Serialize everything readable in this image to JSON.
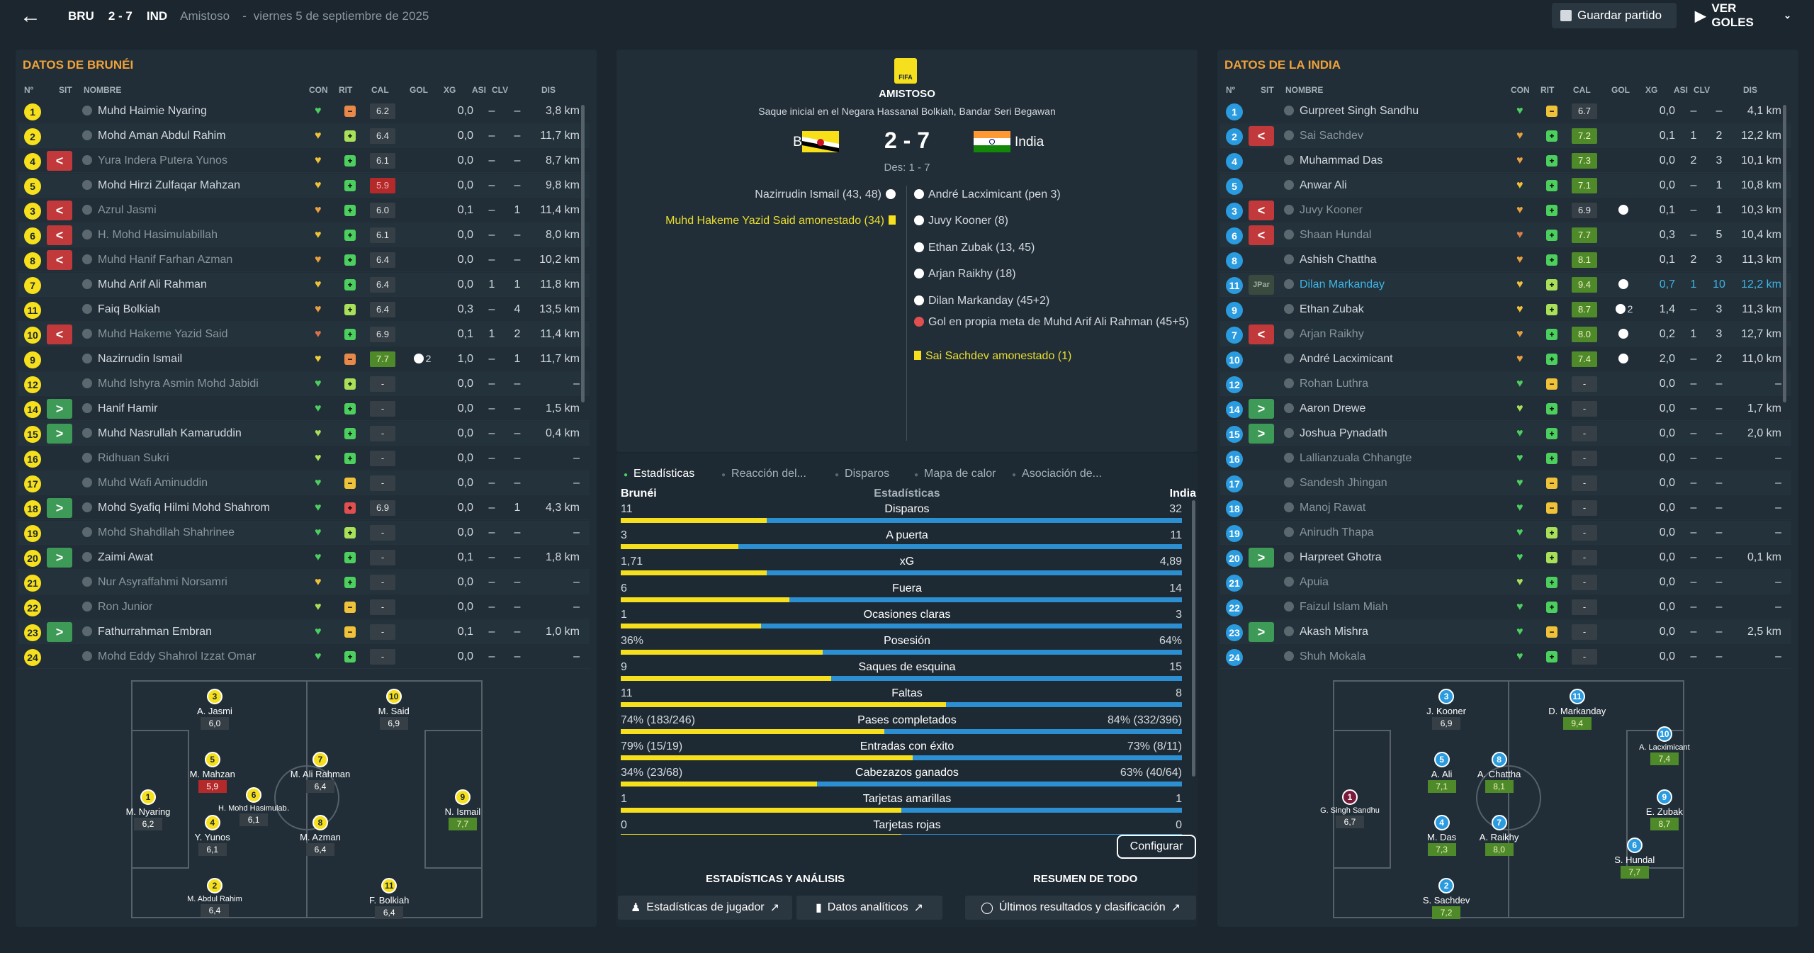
{
  "topbar": {
    "home": "BRU",
    "score": "2 - 7",
    "away": "IND",
    "competition": "Amistoso",
    "sep": "-",
    "date": "viernes 5 de septiembre de 2025",
    "save": "Guardar partido",
    "goals": "VER GOLES"
  },
  "headers": [
    "Nº",
    "SIT",
    "NOMBRE",
    "CON",
    "RIT",
    "CAL",
    "GOL",
    "XG",
    "ASI",
    "CLV",
    "DIS"
  ],
  "left": {
    "title": "DATOS DE BRUNÉI",
    "players": [
      {
        "n": "1",
        "s": "",
        "name": "Muhd Haimie Nyaring",
        "c": "#4ccf5f",
        "r": "#e8894a",
        "cal": "6.2",
        "ct": "",
        "g": "",
        "xg": "0,0",
        "a": "–",
        "k": "–",
        "d": "3,8 km",
        "dim": false
      },
      {
        "n": "2",
        "s": "",
        "name": "Mohd Aman Abdul Rahim",
        "c": "#f0c23a",
        "r": "#a8e05a",
        "cal": "6.4",
        "ct": "",
        "g": "",
        "xg": "0,0",
        "a": "–",
        "k": "–",
        "d": "11,7 km",
        "dim": false
      },
      {
        "n": "4",
        "s": "out",
        "name": "Yura Indera Putera Yunos",
        "c": "#f0c23a",
        "r": "#4ccf5f",
        "cal": "6.1",
        "ct": "",
        "g": "",
        "xg": "0,0",
        "a": "–",
        "k": "–",
        "d": "8,7 km",
        "dim": true
      },
      {
        "n": "5",
        "s": "",
        "name": "Mohd Hirzi Zulfaqar Mahzan",
        "c": "#f0c23a",
        "r": "#4ccf5f",
        "cal": "5.9",
        "ct": "red",
        "g": "",
        "xg": "0,0",
        "a": "–",
        "k": "–",
        "d": "9,8 km",
        "dim": false
      },
      {
        "n": "3",
        "s": "out",
        "name": "Azrul Jasmi",
        "c": "#e8a040",
        "r": "#4ccf5f",
        "cal": "6.0",
        "ct": "",
        "g": "",
        "xg": "0,1",
        "a": "–",
        "k": "1",
        "d": "11,4 km",
        "dim": true
      },
      {
        "n": "6",
        "s": "out",
        "name": "H. Mohd Hasimulabillah",
        "c": "#f0c23a",
        "r": "#4ccf5f",
        "cal": "6.1",
        "ct": "",
        "g": "",
        "xg": "0,0",
        "a": "–",
        "k": "–",
        "d": "8,0 km",
        "dim": true
      },
      {
        "n": "8",
        "s": "out",
        "name": "Muhd Hanif Farhan Azman",
        "c": "#e8a040",
        "r": "#4ccf5f",
        "cal": "6.4",
        "ct": "",
        "g": "",
        "xg": "0,0",
        "a": "–",
        "k": "–",
        "d": "10,2 km",
        "dim": true
      },
      {
        "n": "7",
        "s": "",
        "name": "Muhd Arif Ali Rahman",
        "c": "#f0c23a",
        "r": "#4ccf5f",
        "cal": "6.4",
        "ct": "",
        "g": "",
        "xg": "0,0",
        "a": "1",
        "k": "1",
        "d": "11,8 km",
        "dim": false
      },
      {
        "n": "11",
        "s": "",
        "name": "Faiq Bolkiah",
        "c": "#e8a040",
        "r": "#a8e05a",
        "cal": "6.4",
        "ct": "",
        "g": "",
        "xg": "0,3",
        "a": "–",
        "k": "4",
        "d": "13,5 km",
        "dim": false
      },
      {
        "n": "10",
        "s": "out",
        "name": "Muhd Hakeme Yazid Said",
        "c": "#d9704a",
        "r": "#4ccf5f",
        "cal": "6.9",
        "ct": "",
        "g": "",
        "xg": "0,1",
        "a": "1",
        "k": "2",
        "d": "11,4 km",
        "dim": true
      },
      {
        "n": "9",
        "s": "",
        "name": "Nazirrudin Ismail",
        "c": "#f0d03a",
        "r": "#e8894a",
        "cal": "7.7",
        "ct": "green",
        "g": "2",
        "xg": "1,0",
        "a": "–",
        "k": "1",
        "d": "11,7 km",
        "dim": false
      },
      {
        "n": "12",
        "s": "",
        "name": "Muhd Ishyra Asmin Mohd Jabidi",
        "c": "#4ccf5f",
        "r": "#a8e05a",
        "cal": "-",
        "ct": "",
        "g": "",
        "xg": "0,0",
        "a": "–",
        "k": "–",
        "d": "–",
        "dim": true
      },
      {
        "n": "14",
        "s": "in",
        "name": "Hanif Hamir",
        "c": "#4ccf5f",
        "r": "#4ccf5f",
        "cal": "-",
        "ct": "",
        "g": "",
        "xg": "0,0",
        "a": "–",
        "k": "–",
        "d": "1,5 km",
        "dim": false
      },
      {
        "n": "15",
        "s": "in",
        "name": "Muhd Nasrullah Kamaruddin",
        "c": "#a8e05a",
        "r": "#4ccf5f",
        "cal": "-",
        "ct": "",
        "g": "",
        "xg": "0,0",
        "a": "–",
        "k": "–",
        "d": "0,4 km",
        "dim": false
      },
      {
        "n": "16",
        "s": "",
        "name": "Ridhuan Sukri",
        "c": "#a8e05a",
        "r": "#4ccf5f",
        "cal": "-",
        "ct": "",
        "g": "",
        "xg": "0,0",
        "a": "–",
        "k": "–",
        "d": "–",
        "dim": true
      },
      {
        "n": "17",
        "s": "",
        "name": "Muhd Wafi Aminuddin",
        "c": "#4ccf5f",
        "r": "#f0c23a",
        "cal": "-",
        "ct": "",
        "g": "",
        "xg": "0,0",
        "a": "–",
        "k": "–",
        "d": "–",
        "dim": true
      },
      {
        "n": "18",
        "s": "in",
        "name": "Mohd Syafiq Hilmi Mohd Shahrom",
        "c": "#4ccf5f",
        "r": "#e05050",
        "cal": "6.9",
        "ct": "",
        "g": "",
        "xg": "0,0",
        "a": "–",
        "k": "1",
        "d": "4,3 km",
        "dim": false
      },
      {
        "n": "19",
        "s": "",
        "name": "Mohd Shahdilah Shahrinee",
        "c": "#4ccf5f",
        "r": "#a8e05a",
        "cal": "-",
        "ct": "",
        "g": "",
        "xg": "0,0",
        "a": "–",
        "k": "–",
        "d": "–",
        "dim": true
      },
      {
        "n": "20",
        "s": "in",
        "name": "Zaimi Awat",
        "c": "#4ccf5f",
        "r": "#4ccf5f",
        "cal": "-",
        "ct": "",
        "g": "",
        "xg": "0,1",
        "a": "–",
        "k": "–",
        "d": "1,8 km",
        "dim": false
      },
      {
        "n": "21",
        "s": "",
        "name": "Nur Asyraffahmi Norsamri",
        "c": "#f0c23a",
        "r": "#4ccf5f",
        "cal": "-",
        "ct": "",
        "g": "",
        "xg": "0,0",
        "a": "–",
        "k": "–",
        "d": "–",
        "dim": true
      },
      {
        "n": "22",
        "s": "",
        "name": "Ron Junior",
        "c": "#a8e05a",
        "r": "#f0c23a",
        "cal": "-",
        "ct": "",
        "g": "",
        "xg": "0,0",
        "a": "–",
        "k": "–",
        "d": "–",
        "dim": true
      },
      {
        "n": "23",
        "s": "in",
        "name": "Fathurrahman Embran",
        "c": "#4ccf5f",
        "r": "#f0c23a",
        "cal": "-",
        "ct": "",
        "g": "",
        "xg": "0,1",
        "a": "–",
        "k": "–",
        "d": "1,0 km",
        "dim": false
      },
      {
        "n": "24",
        "s": "",
        "name": "Mohd Eddy Shahrol Izzat Omar",
        "c": "#4ccf5f",
        "r": "#4ccf5f",
        "cal": "-",
        "ct": "",
        "g": "",
        "xg": "0,0",
        "a": "–",
        "k": "–",
        "d": "–",
        "dim": true
      }
    ],
    "formation": [
      {
        "n": "1",
        "name": "M. Nyaring",
        "r": "6,2",
        "rt": ""
      },
      {
        "n": "3",
        "name": "A. Jasmi",
        "r": "6,0",
        "rt": ""
      },
      {
        "n": "5",
        "name": "M. Mahzan",
        "r": "5,9",
        "rt": "red"
      },
      {
        "n": "4",
        "name": "Y. Yunos",
        "r": "6,1",
        "rt": ""
      },
      {
        "n": "2",
        "name": "M. Abdul Rahim",
        "r": "6,4",
        "rt": ""
      },
      {
        "n": "6",
        "name": "H. Mohd Hasimulab…",
        "r": "6,1",
        "rt": ""
      },
      {
        "n": "7",
        "name": "M. Ali Rahman",
        "r": "6,4",
        "rt": ""
      },
      {
        "n": "8",
        "name": "M. Azman",
        "r": "6,4",
        "rt": ""
      },
      {
        "n": "10",
        "name": "M. Said",
        "r": "6,9",
        "rt": ""
      },
      {
        "n": "11",
        "name": "F. Bolkiah",
        "r": "6,4",
        "rt": ""
      },
      {
        "n": "9",
        "name": "N. Ismail",
        "r": "7,7",
        "rt": "green"
      }
    ]
  },
  "right": {
    "title": "DATOS DE LA INDIA",
    "players": [
      {
        "n": "1",
        "s": "",
        "name": "Gurpreet Singh Sandhu",
        "c": "#4ccf5f",
        "r": "#f0c23a",
        "cal": "6.7",
        "ct": "",
        "g": "",
        "xg": "0,0",
        "a": "–",
        "k": "–",
        "d": "4,1 km",
        "dim": false,
        "hl": false
      },
      {
        "n": "2",
        "s": "out",
        "name": "Sai Sachdev",
        "c": "#e8a040",
        "r": "#4ccf5f",
        "cal": "7.2",
        "ct": "green",
        "g": "",
        "xg": "0,1",
        "a": "1",
        "k": "2",
        "d": "12,2 km",
        "dim": true,
        "hl": false
      },
      {
        "n": "4",
        "s": "",
        "name": "Muhammad Das",
        "c": "#e8a040",
        "r": "#4ccf5f",
        "cal": "7.3",
        "ct": "green",
        "g": "",
        "xg": "0,0",
        "a": "2",
        "k": "3",
        "d": "10,1 km",
        "dim": false,
        "hl": false
      },
      {
        "n": "5",
        "s": "",
        "name": "Anwar Ali",
        "c": "#f0c23a",
        "r": "#4ccf5f",
        "cal": "7.1",
        "ct": "green",
        "g": "",
        "xg": "0,0",
        "a": "–",
        "k": "1",
        "d": "10,8 km",
        "dim": false,
        "hl": false
      },
      {
        "n": "3",
        "s": "out",
        "name": "Juvy Kooner",
        "c": "#e8a040",
        "r": "#4ccf5f",
        "cal": "6.9",
        "ct": "",
        "g": "1",
        "xg": "0,1",
        "a": "–",
        "k": "1",
        "d": "10,3 km",
        "dim": true,
        "hl": false
      },
      {
        "n": "6",
        "s": "out",
        "name": "Shaan Hundal",
        "c": "#d9804a",
        "r": "#4ccf5f",
        "cal": "7.7",
        "ct": "green",
        "g": "",
        "xg": "0,3",
        "a": "–",
        "k": "5",
        "d": "10,4 km",
        "dim": true,
        "hl": false
      },
      {
        "n": "8",
        "s": "",
        "name": "Ashish Chattha",
        "c": "#e8a040",
        "r": "#4ccf5f",
        "cal": "8.1",
        "ct": "green",
        "g": "",
        "xg": "0,1",
        "a": "2",
        "k": "3",
        "d": "11,3 km",
        "dim": false,
        "hl": false
      },
      {
        "n": "11",
        "s": "jpar",
        "name": "Dilan Markanday",
        "c": "#f0c23a",
        "r": "#a8e05a",
        "cal": "9.4",
        "ct": "green",
        "g": "1",
        "xg": "0,7",
        "a": "1",
        "k": "10",
        "d": "12,2 km",
        "dim": false,
        "hl": true
      },
      {
        "n": "9",
        "s": "",
        "name": "Ethan Zubak",
        "c": "#f0c23a",
        "r": "#a8e05a",
        "cal": "8.7",
        "ct": "green",
        "g": "2",
        "xg": "1,4",
        "a": "–",
        "k": "3",
        "d": "11,3 km",
        "dim": false,
        "hl": false
      },
      {
        "n": "7",
        "s": "out",
        "name": "Arjan Raikhy",
        "c": "#e8a040",
        "r": "#4ccf5f",
        "cal": "8.0",
        "ct": "green",
        "g": "1",
        "xg": "0,2",
        "a": "1",
        "k": "3",
        "d": "12,7 km",
        "dim": true,
        "hl": false
      },
      {
        "n": "10",
        "s": "",
        "name": "André Lacximicant",
        "c": "#e8a040",
        "r": "#4ccf5f",
        "cal": "7.4",
        "ct": "green",
        "g": "1",
        "xg": "2,0",
        "a": "–",
        "k": "2",
        "d": "11,0 km",
        "dim": false,
        "hl": false
      },
      {
        "n": "12",
        "s": "",
        "name": "Rohan Luthra",
        "c": "#4ccf5f",
        "r": "#f0c23a",
        "cal": "-",
        "ct": "",
        "g": "",
        "xg": "0,0",
        "a": "–",
        "k": "–",
        "d": "–",
        "dim": true,
        "hl": false
      },
      {
        "n": "14",
        "s": "in",
        "name": "Aaron Drewe",
        "c": "#a8e05a",
        "r": "#4ccf5f",
        "cal": "-",
        "ct": "",
        "g": "",
        "xg": "0,0",
        "a": "–",
        "k": "–",
        "d": "1,7 km",
        "dim": false,
        "hl": false
      },
      {
        "n": "15",
        "s": "in",
        "name": "Joshua Pynadath",
        "c": "#4ccf5f",
        "r": "#4ccf5f",
        "cal": "-",
        "ct": "",
        "g": "",
        "xg": "0,0",
        "a": "–",
        "k": "–",
        "d": "2,0 km",
        "dim": false,
        "hl": false
      },
      {
        "n": "16",
        "s": "",
        "name": "Lallianzuala Chhangte",
        "c": "#4ccf5f",
        "r": "#4ccf5f",
        "cal": "-",
        "ct": "",
        "g": "",
        "xg": "0,0",
        "a": "–",
        "k": "–",
        "d": "–",
        "dim": true,
        "hl": false
      },
      {
        "n": "17",
        "s": "",
        "name": "Sandesh Jhingan",
        "c": "#4ccf5f",
        "r": "#f0c23a",
        "cal": "-",
        "ct": "",
        "g": "",
        "xg": "0,0",
        "a": "–",
        "k": "–",
        "d": "–",
        "dim": true,
        "hl": false
      },
      {
        "n": "18",
        "s": "",
        "name": "Manoj Rawat",
        "c": "#4ccf5f",
        "r": "#f0c23a",
        "cal": "-",
        "ct": "",
        "g": "",
        "xg": "0,0",
        "a": "–",
        "k": "–",
        "d": "–",
        "dim": true,
        "hl": false
      },
      {
        "n": "19",
        "s": "",
        "name": "Anirudh Thapa",
        "c": "#4ccf5f",
        "r": "#a8e05a",
        "cal": "-",
        "ct": "",
        "g": "",
        "xg": "0,0",
        "a": "–",
        "k": "–",
        "d": "–",
        "dim": true,
        "hl": false
      },
      {
        "n": "20",
        "s": "in",
        "name": "Harpreet Ghotra",
        "c": "#4ccf5f",
        "r": "#a8e05a",
        "cal": "-",
        "ct": "",
        "g": "",
        "xg": "0,0",
        "a": "–",
        "k": "–",
        "d": "0,1 km",
        "dim": false,
        "hl": false
      },
      {
        "n": "21",
        "s": "",
        "name": "Apuia",
        "c": "#a8e05a",
        "r": "#4ccf5f",
        "cal": "-",
        "ct": "",
        "g": "",
        "xg": "0,0",
        "a": "–",
        "k": "–",
        "d": "–",
        "dim": true,
        "hl": false
      },
      {
        "n": "22",
        "s": "",
        "name": "Faizul Islam Miah",
        "c": "#4ccf5f",
        "r": "#4ccf5f",
        "cal": "-",
        "ct": "",
        "g": "",
        "xg": "0,0",
        "a": "–",
        "k": "–",
        "d": "–",
        "dim": true,
        "hl": false
      },
      {
        "n": "23",
        "s": "in",
        "name": "Akash Mishra",
        "c": "#4ccf5f",
        "r": "#f0c23a",
        "cal": "-",
        "ct": "",
        "g": "",
        "xg": "0,0",
        "a": "–",
        "k": "–",
        "d": "2,5 km",
        "dim": false,
        "hl": false
      },
      {
        "n": "24",
        "s": "",
        "name": "Shuh Mokala",
        "c": "#4ccf5f",
        "r": "#4ccf5f",
        "cal": "-",
        "ct": "",
        "g": "",
        "xg": "0,0",
        "a": "–",
        "k": "–",
        "d": "–",
        "dim": true,
        "hl": false
      }
    ],
    "formation": [
      {
        "n": "1",
        "name": "G. Singh Sandhu",
        "r": "6,7",
        "rt": ""
      },
      {
        "n": "3",
        "name": "J. Kooner",
        "r": "6,9",
        "rt": ""
      },
      {
        "n": "5",
        "name": "A. Ali",
        "r": "7,1",
        "rt": "green"
      },
      {
        "n": "4",
        "name": "M. Das",
        "r": "7,3",
        "rt": "green"
      },
      {
        "n": "2",
        "name": "S. Sachdev",
        "r": "7,2",
        "rt": "green"
      },
      {
        "n": "8",
        "name": "A. Chattha",
        "r": "8,1",
        "rt": "green"
      },
      {
        "n": "7",
        "name": "A. Raikhy",
        "r": "8,0",
        "rt": "green"
      },
      {
        "n": "11",
        "name": "D. Markanday",
        "r": "9,4",
        "rt": "green"
      },
      {
        "n": "6",
        "name": "S. Hundal",
        "r": "7,7",
        "rt": "green"
      },
      {
        "n": "10",
        "name": "A. Lacximicant",
        "r": "7,4",
        "rt": "green"
      },
      {
        "n": "9",
        "name": "E. Zubak",
        "r": "8,7",
        "rt": "green"
      }
    ]
  },
  "match": {
    "competition": "AMISTOSO",
    "venue": "Saque inicial en el Negara Hassanal Bolkiah, Bandar Seri Begawan",
    "home": "Brunéi",
    "away": "India",
    "score": "2 - 7",
    "halftime": "Des: 1 - 7",
    "logo_text": "FIFA",
    "home_events": [
      {
        "t": "Nazirrudin Ismail (43, 48)",
        "type": "goal"
      },
      {
        "t": "Muhd Hakeme Yazid Said amonestado (34)",
        "type": "card"
      }
    ],
    "away_events": [
      {
        "t": "André Lacximicant (pen 3)",
        "type": "goal"
      },
      {
        "t": "Juvy Kooner (8)",
        "type": "goal"
      },
      {
        "t": "Ethan Zubak (13, 45)",
        "type": "goal"
      },
      {
        "t": "Arjan Raikhy (18)",
        "type": "goal"
      },
      {
        "t": "Dilan Markanday (45+2)",
        "type": "goal"
      },
      {
        "t": "Gol en propia meta de Muhd Arif Ali Rahman (45+5)",
        "type": "owngoal"
      },
      {
        "t": "Sai Sachdev amonestado (1)",
        "type": "card"
      }
    ]
  },
  "tabs": [
    "Estadísticas",
    "Reacción del...",
    "Disparos",
    "Mapa de calor",
    "Asociación de..."
  ],
  "stats_header": {
    "left": "Brunéi",
    "mid": "Estadísticas",
    "right": "India"
  },
  "stats": [
    {
      "l": "11",
      "m": "Disparos",
      "r": "32",
      "f": 0.26
    },
    {
      "l": "3",
      "m": "A puerta",
      "r": "11",
      "f": 0.21
    },
    {
      "l": "1,71",
      "m": "xG",
      "r": "4,89",
      "f": 0.26
    },
    {
      "l": "6",
      "m": "Fuera",
      "r": "14",
      "f": 0.3
    },
    {
      "l": "1",
      "m": "Ocasiones claras",
      "r": "3",
      "f": 0.25
    },
    {
      "l": "36%",
      "m": "Posesión",
      "r": "64%",
      "f": 0.36
    },
    {
      "l": "9",
      "m": "Saques de esquina",
      "r": "15",
      "f": 0.375
    },
    {
      "l": "11",
      "m": "Faltas",
      "r": "8",
      "f": 0.58
    },
    {
      "l": "74% (183/246)",
      "m": "Pases completados",
      "r": "84% (332/396)",
      "f": 0.47
    },
    {
      "l": "79% (15/19)",
      "m": "Entradas con éxito",
      "r": "73% (8/11)",
      "f": 0.52
    },
    {
      "l": "34% (23/68)",
      "m": "Cabezazos ganados",
      "r": "63% (40/64)",
      "f": 0.35
    },
    {
      "l": "1",
      "m": "Tarjetas amarillas",
      "r": "1",
      "f": 0.5
    },
    {
      "l": "0",
      "m": "Tarjetas rojas",
      "r": "0",
      "f": 0.5
    }
  ],
  "buttons": {
    "configure": "Configurar",
    "sec1": "ESTADÍSTICAS Y ANÁLISIS",
    "sec2": "RESUMEN DE TODO",
    "player_stats": "Estadísticas de jugador",
    "analytics": "Datos analíticos",
    "results": "Últimos resultados y clasificación"
  }
}
